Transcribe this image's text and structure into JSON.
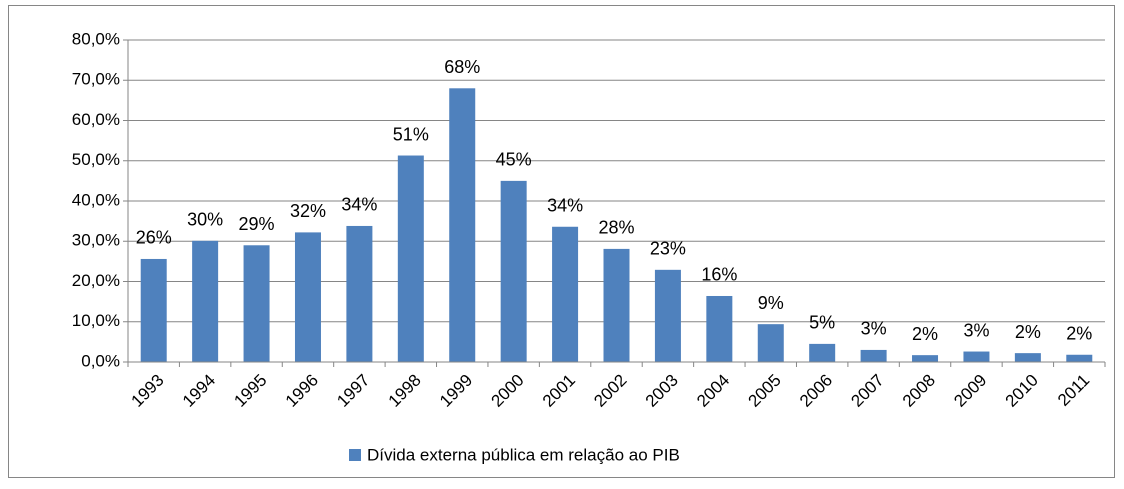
{
  "chart_data": {
    "type": "bar",
    "categories": [
      "1993",
      "1994",
      "1995",
      "1996",
      "1997",
      "1998",
      "1999",
      "2000",
      "2001",
      "2002",
      "2003",
      "2004",
      "2005",
      "2006",
      "2007",
      "2008",
      "2009",
      "2010",
      "2011"
    ],
    "series": [
      {
        "name": "Dívida externa pública em relação ao PIB",
        "color": "#4f81bd",
        "values": [
          25.6,
          30.1,
          29,
          32.2,
          33.8,
          51.3,
          68,
          45,
          33.6,
          28.1,
          22.9,
          16.4,
          9.4,
          4.5,
          3.0,
          1.7,
          2.6,
          2.2,
          1.8
        ],
        "value_labels": [
          "26%",
          "30%",
          "29%",
          "32%",
          "34%",
          "51%",
          "68%",
          "45%",
          "34%",
          "28%",
          "23%",
          "16%",
          "9%",
          "5%",
          "3%",
          "2%",
          "3%",
          "2%",
          "2%"
        ]
      }
    ],
    "ylim": [
      0,
      80
    ],
    "yticks": [
      {
        "value": 0,
        "label": "0,0%"
      },
      {
        "value": 10,
        "label": "10,0%"
      },
      {
        "value": 20,
        "label": "20,0%"
      },
      {
        "value": 30,
        "label": "30,0%"
      },
      {
        "value": 40,
        "label": "40,0%"
      },
      {
        "value": 50,
        "label": "50,0%"
      },
      {
        "value": 60,
        "label": "60,0%"
      },
      {
        "value": 70,
        "label": "70,0%"
      },
      {
        "value": 80,
        "label": "80,0%"
      }
    ],
    "grid": true,
    "legend": "bottom"
  }
}
